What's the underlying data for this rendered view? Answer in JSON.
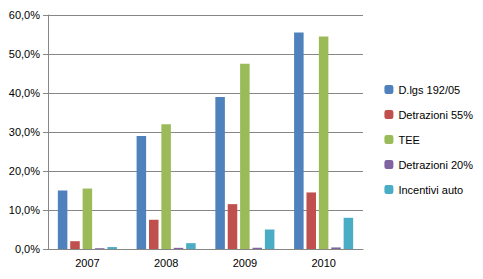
{
  "chart_data": {
    "type": "bar",
    "categories": [
      "2007",
      "2008",
      "2009",
      "2010"
    ],
    "series": [
      {
        "name": "D.lgs 192/05",
        "color": "#4f81bd",
        "values": [
          15,
          29,
          39,
          55.5
        ]
      },
      {
        "name": "Detrazioni 55%",
        "color": "#c0504d",
        "values": [
          2,
          7.5,
          11.5,
          14.5
        ]
      },
      {
        "name": "TEE",
        "color": "#9bbb59",
        "values": [
          15.5,
          32,
          47.5,
          54.5
        ]
      },
      {
        "name": "Detrazioni 20%",
        "color": "#8064a2",
        "values": [
          0.2,
          0.3,
          0.3,
          0.4
        ]
      },
      {
        "name": "Incentivi auto",
        "color": "#4bacc6",
        "values": [
          0.5,
          1.5,
          5,
          8
        ]
      }
    ],
    "ylim": [
      0,
      60
    ],
    "yticks": [
      {
        "value": 0,
        "label": "0,0%"
      },
      {
        "value": 10,
        "label": "10,0%"
      },
      {
        "value": 20,
        "label": "20,0%"
      },
      {
        "value": 30,
        "label": "30,0%"
      },
      {
        "value": 40,
        "label": "40,0%"
      },
      {
        "value": 50,
        "label": "50,0%"
      },
      {
        "value": 60,
        "label": "60,0%"
      }
    ],
    "grid": true,
    "legend": "right"
  }
}
